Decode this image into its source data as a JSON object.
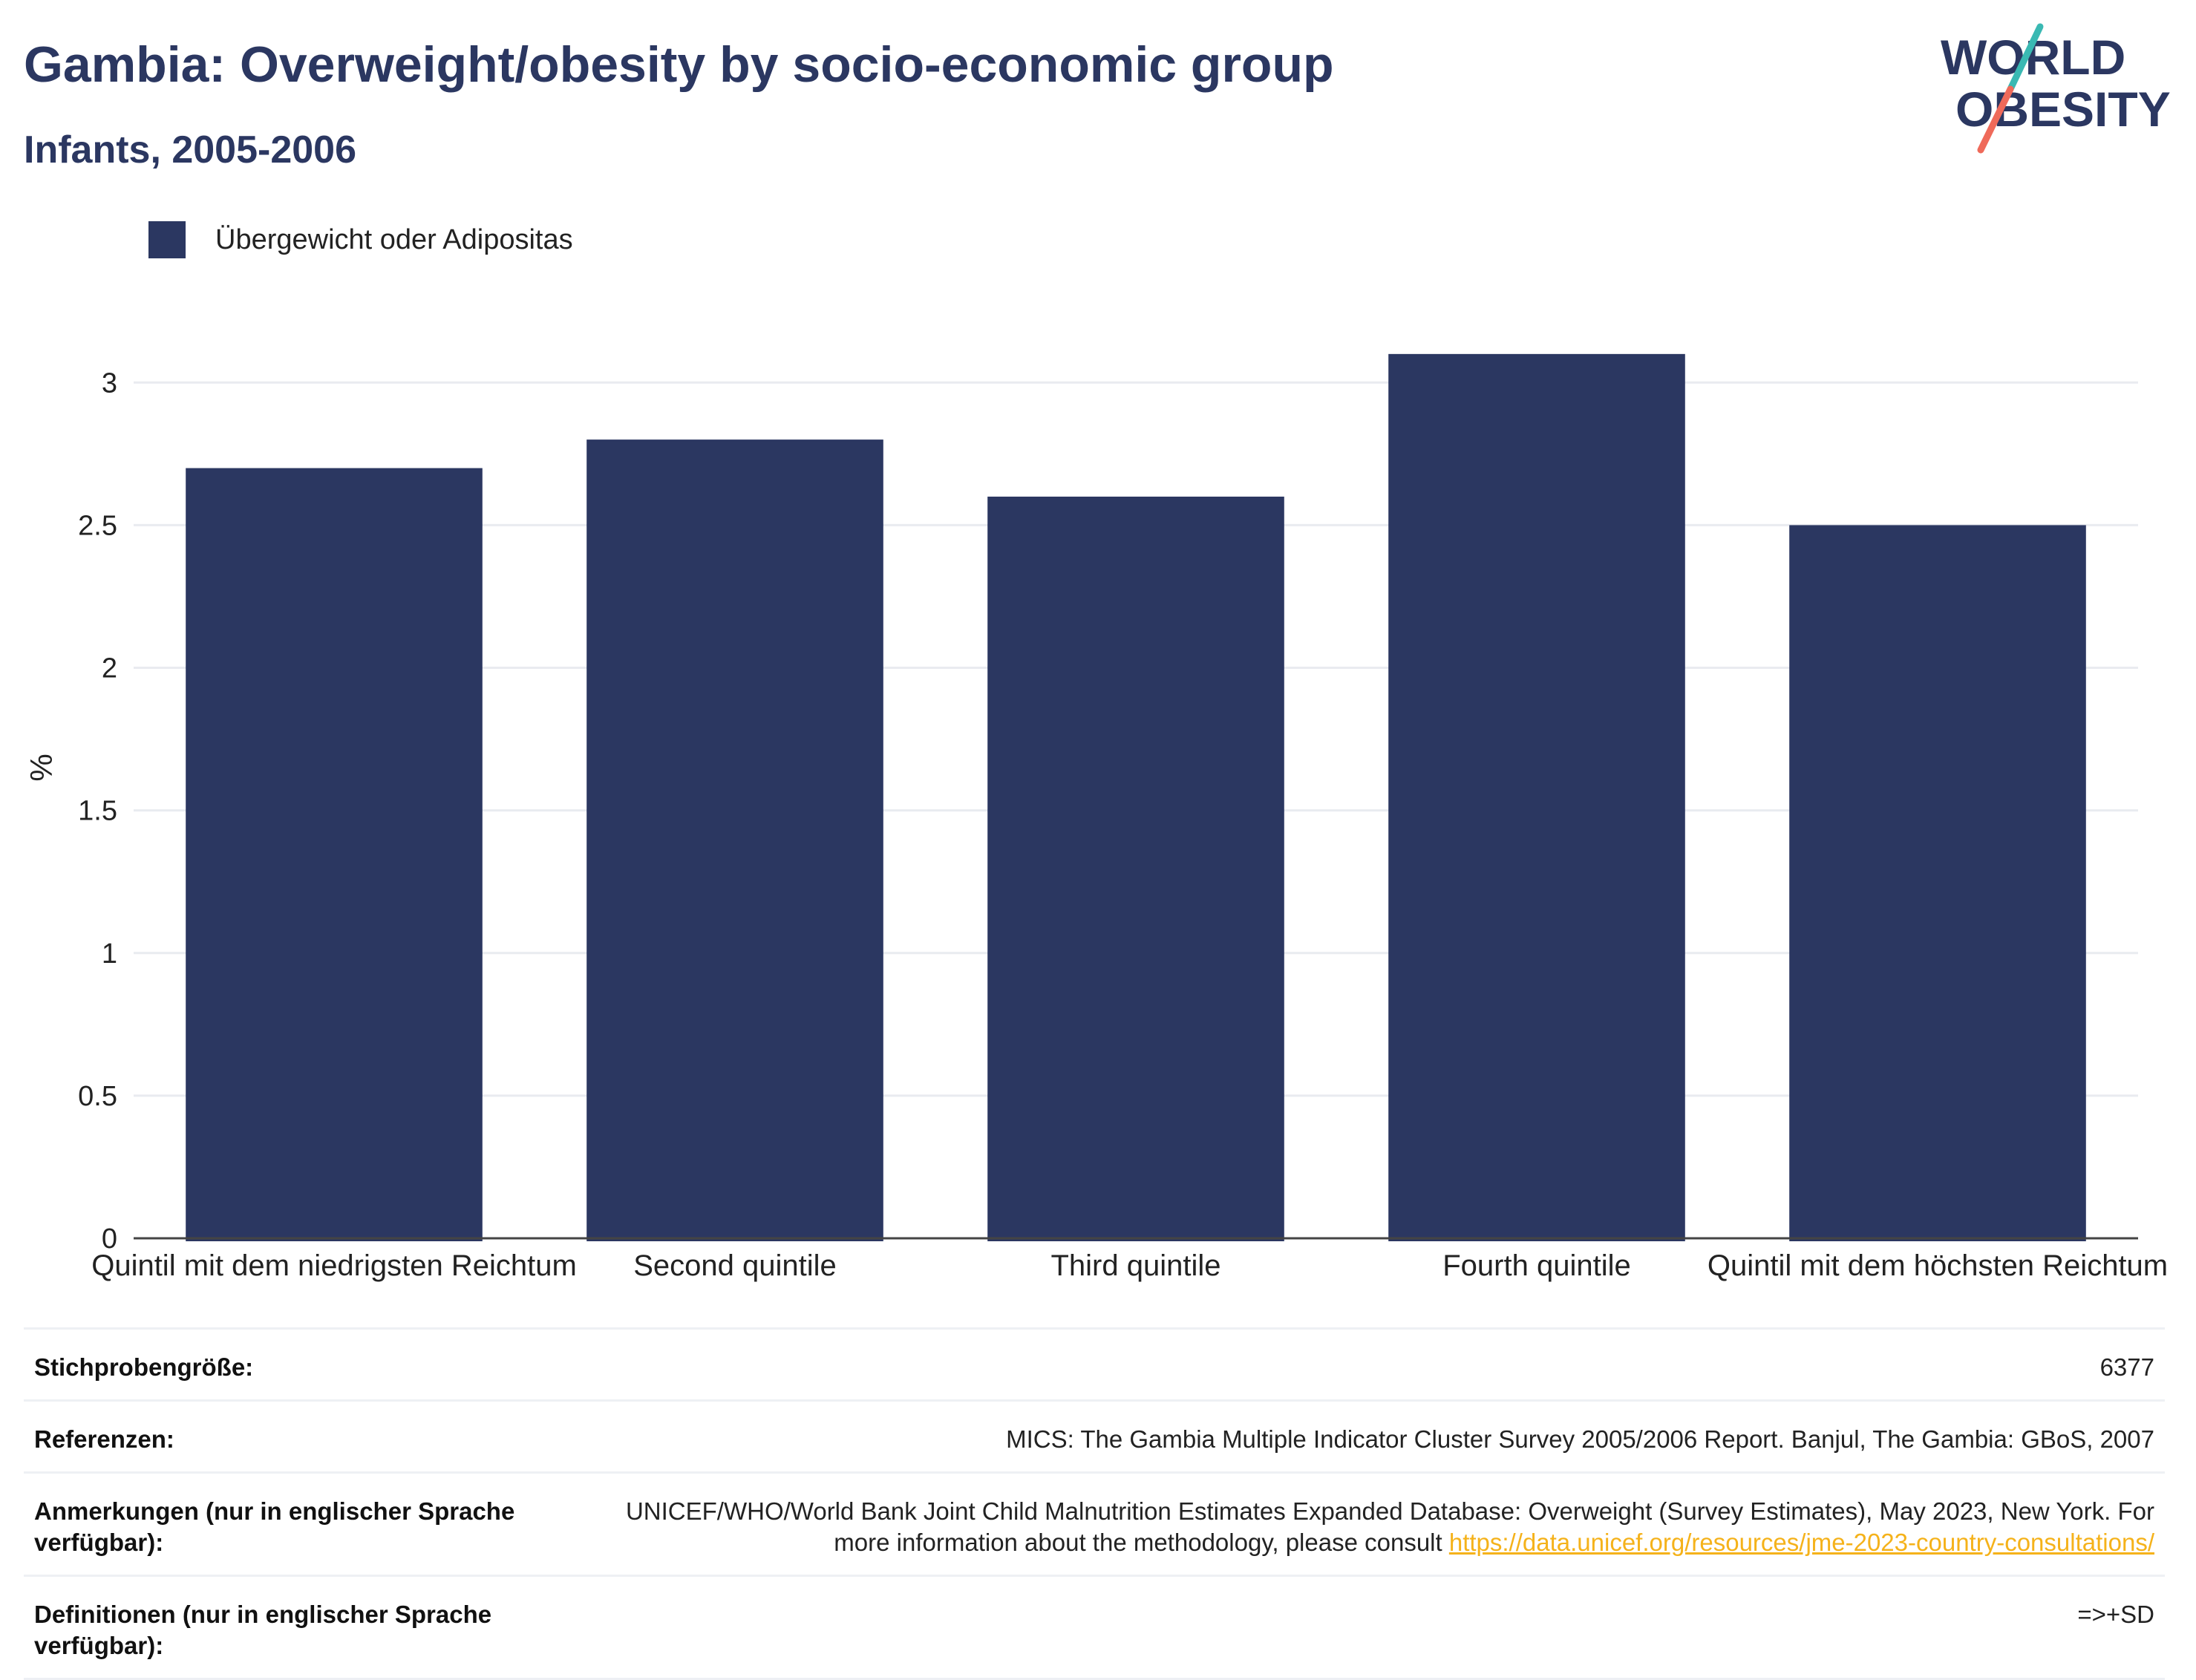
{
  "header": {
    "title": "Gambia: Overweight/obesity by socio-economic group",
    "subtitle": "Infants, 2005-2006"
  },
  "logo": {
    "line1": "WORLD",
    "line2": "OBESITY",
    "colors": {
      "text": "#2b3761",
      "slash_top": "#3ab9b3",
      "slash_bottom": "#ef6a5a"
    }
  },
  "legend": {
    "label": "Übergewicht oder Adipositas",
    "color": "#2b3761"
  },
  "chart_data": {
    "type": "bar",
    "categories": [
      "Quintil mit dem niedrigsten Reichtum",
      "Second quintile",
      "Third quintile",
      "Fourth quintile",
      "Quintil mit dem höchsten Reichtum"
    ],
    "series": [
      {
        "name": "Übergewicht oder Adipositas",
        "values": [
          2.7,
          2.8,
          2.6,
          3.1,
          2.5
        ]
      }
    ],
    "ylabel": "%",
    "yticks": [
      0,
      0.5,
      1,
      1.5,
      2,
      2.5,
      3
    ],
    "ytick_labels": [
      "0",
      "0.5",
      "1",
      "1.5",
      "2",
      "2.5",
      "3"
    ],
    "ylim": [
      0,
      3.3
    ],
    "grid": true,
    "legend_position": "top-left",
    "bar_color": "#2b3761"
  },
  "meta": {
    "rows": [
      {
        "key": "Stichprobengröße:",
        "value": "6377"
      },
      {
        "key": "Referenzen:",
        "value": "MICS: The Gambia Multiple Indicator Cluster Survey 2005/2006 Report. Banjul, The Gambia: GBoS, 2007"
      },
      {
        "key": "Anmerkungen (nur in englischer Sprache verfügbar):",
        "value": "UNICEF/WHO/World Bank Joint Child Malnutrition Estimates Expanded Database: Overweight (Survey Estimates), May 2023, New York. For more information about the methodology, please consult ",
        "link": "https://data.unicef.org/resources/jme-2023-country-consultations/"
      },
      {
        "key": "Definitionen (nur in englischer Sprache verfügbar):",
        "value": "=>+SD"
      }
    ]
  }
}
